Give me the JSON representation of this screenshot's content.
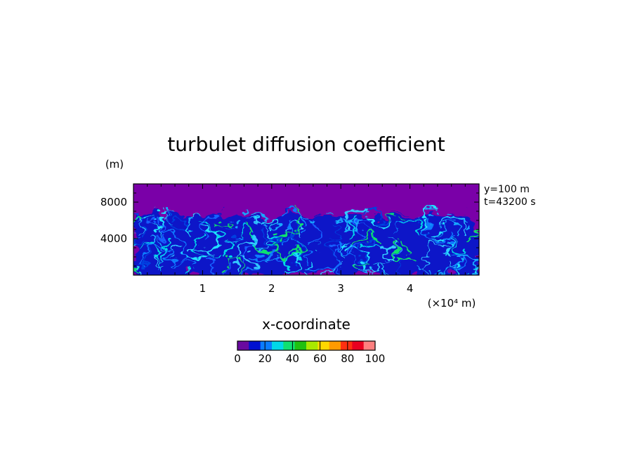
{
  "chart_data": {
    "type": "heatmap",
    "title": "turbulet diffusion coefficient",
    "xlabel": "x-coordinate",
    "x_unit_label": "(×10⁴ m)",
    "y_unit_label": "(m)",
    "annotations": [
      "y=100 m",
      "t=43200 s"
    ],
    "xlim": [
      0,
      5
    ],
    "ylim": [
      0,
      10000
    ],
    "x_ticks": [
      1,
      2,
      3,
      4
    ],
    "x_tick_labels": [
      "1",
      "2",
      "3",
      "4"
    ],
    "y_ticks": [
      4000,
      8000
    ],
    "y_tick_labels": [
      "4000",
      "8000"
    ],
    "turbulent_layer_top_m": 6500,
    "field_description_hidden": false,
    "colorbar": {
      "range": [
        0,
        100
      ],
      "tick_values": [
        0,
        20,
        40,
        60,
        80,
        100
      ],
      "tick_labels": [
        "0",
        "20",
        "40",
        "60",
        "80",
        "100"
      ],
      "colors": [
        "#6a0aa0",
        "#0010d0",
        "#0a7cff",
        "#00d8e8",
        "#10e070",
        "#20c010",
        "#a8e800",
        "#ffd800",
        "#ff9a00",
        "#ff3010",
        "#e80020",
        "#ff8080"
      ]
    },
    "background_color": "#7a00a8"
  }
}
